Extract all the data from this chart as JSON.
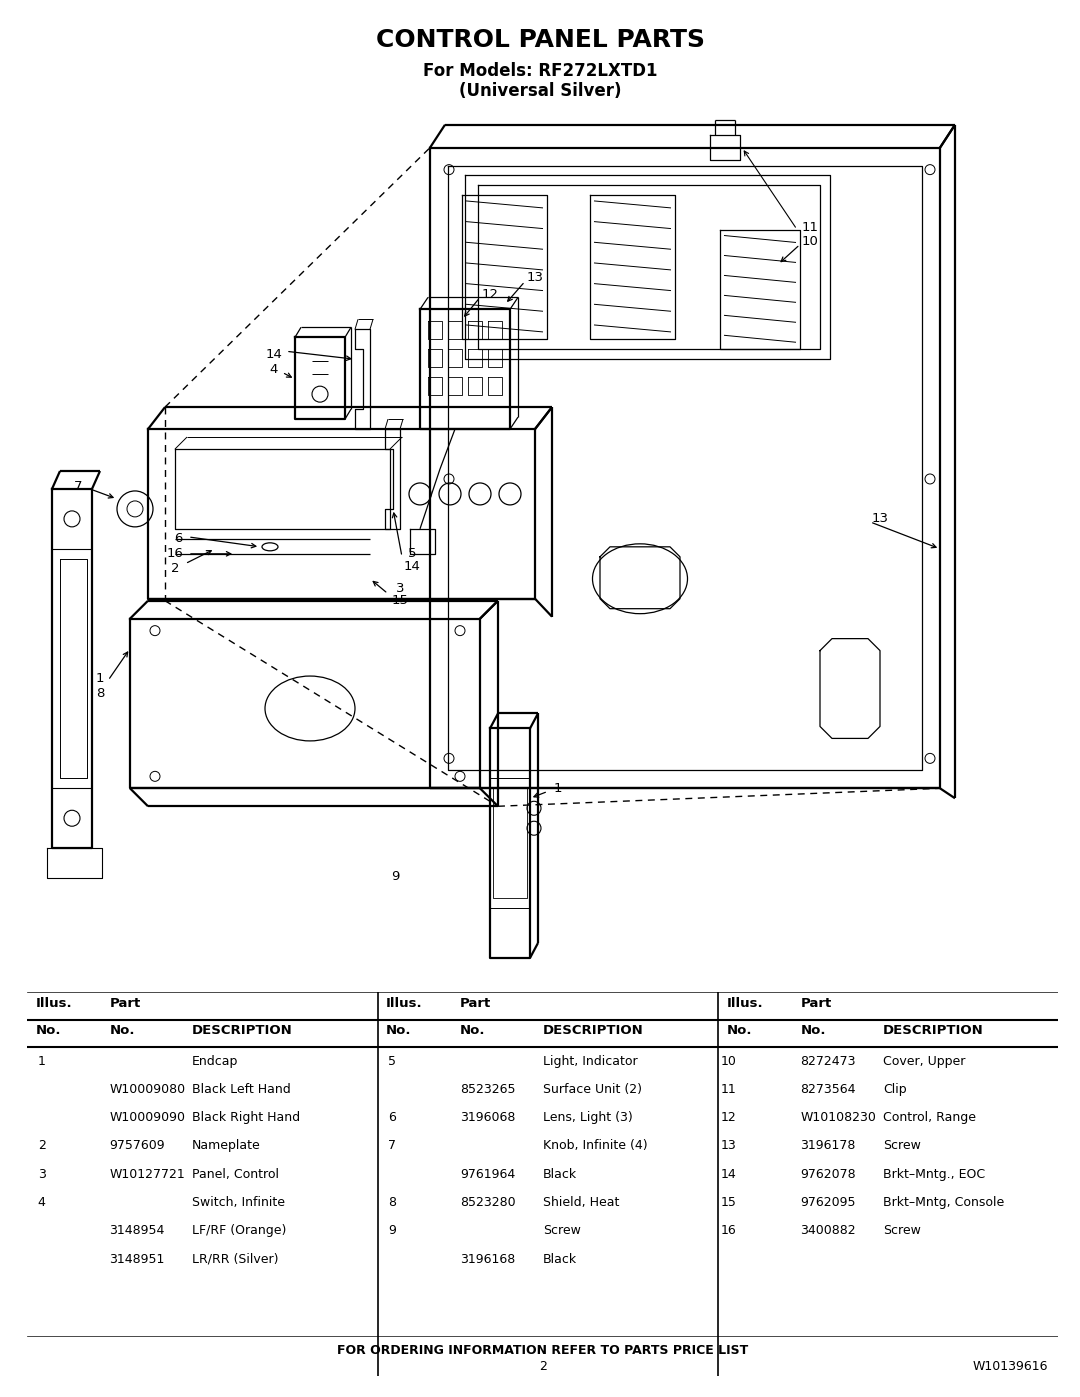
{
  "title": "CONTROL PANEL PARTS",
  "subtitle1": "For Models: RF272LXTD1",
  "subtitle2": "(Universal Silver)",
  "page_number": "2",
  "doc_number": "W10139616",
  "footer_text": "FOR ORDERING INFORMATION REFER TO PARTS PRICE LIST",
  "bg_color": "#ffffff",
  "parts_table": {
    "col1": [
      {
        "illus": "1",
        "part": "",
        "desc": "Endcap"
      },
      {
        "illus": "",
        "part": "W10009080",
        "desc": "Black Left Hand"
      },
      {
        "illus": "",
        "part": "W10009090",
        "desc": "Black Right Hand"
      },
      {
        "illus": "2",
        "part": "9757609",
        "desc": "Nameplate"
      },
      {
        "illus": "3",
        "part": "W10127721",
        "desc": "Panel, Control"
      },
      {
        "illus": "4",
        "part": "",
        "desc": "Switch, Infinite"
      },
      {
        "illus": "",
        "part": "3148954",
        "desc": "LF/RF (Orange)"
      },
      {
        "illus": "",
        "part": "3148951",
        "desc": "LR/RR (Silver)"
      }
    ],
    "col2": [
      {
        "illus": "5",
        "part": "",
        "desc": "Light, Indicator"
      },
      {
        "illus": "",
        "part": "8523265",
        "desc": "Surface Unit (2)"
      },
      {
        "illus": "6",
        "part": "3196068",
        "desc": "Lens, Light (3)"
      },
      {
        "illus": "7",
        "part": "",
        "desc": "Knob, Infinite (4)"
      },
      {
        "illus": "",
        "part": "9761964",
        "desc": "Black"
      },
      {
        "illus": "8",
        "part": "8523280",
        "desc": "Shield, Heat"
      },
      {
        "illus": "9",
        "part": "",
        "desc": "Screw"
      },
      {
        "illus": "",
        "part": "3196168",
        "desc": "Black"
      }
    ],
    "col3": [
      {
        "illus": "10",
        "part": "8272473",
        "desc": "Cover, Upper"
      },
      {
        "illus": "11",
        "part": "8273564",
        "desc": "Clip"
      },
      {
        "illus": "12",
        "part": "W10108230",
        "desc": "Control, Range"
      },
      {
        "illus": "13",
        "part": "3196178",
        "desc": "Screw"
      },
      {
        "illus": "14",
        "part": "9762078",
        "desc": "Brkt–Mntg., EOC"
      },
      {
        "illus": "15",
        "part": "9762095",
        "desc": "Brkt–Mntg, Console"
      },
      {
        "illus": "16",
        "part": "3400882",
        "desc": "Screw"
      }
    ]
  }
}
